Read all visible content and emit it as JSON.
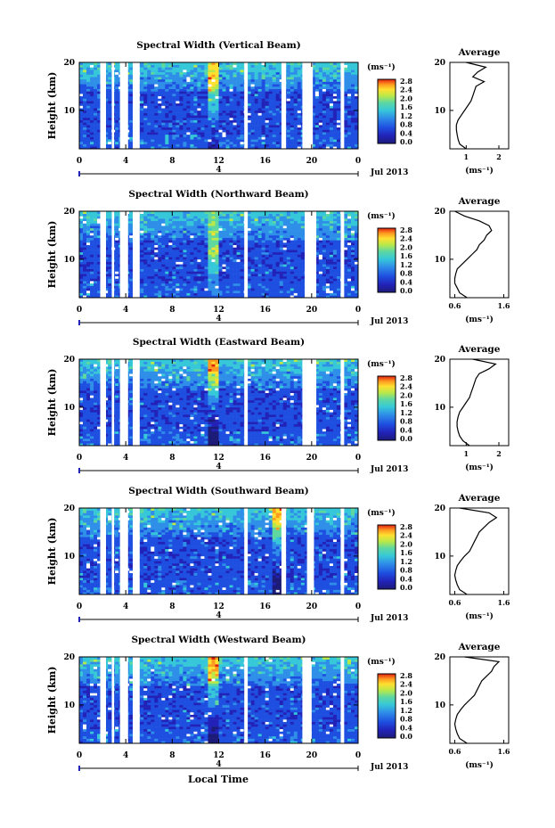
{
  "figure": {
    "shared_xlabel": "Local Time",
    "date_label": "Jul 2013",
    "colorbar_unit": "(ms⁻¹)",
    "colorbar_ticks": [
      "0.0",
      "0.4",
      "0.8",
      "1.2",
      "1.6",
      "2.0",
      "2.4",
      "2.8"
    ],
    "height_label": "Height (km)",
    "time_ticks": [
      "0",
      "4",
      "8",
      "12",
      "16",
      "20",
      "0"
    ],
    "day_label": "4",
    "height_ticks": [
      "20",
      "10"
    ],
    "profile_title": "Average",
    "profile_xlabel": "(ms⁻¹)",
    "colors": {
      "scale": [
        "#1c1c78",
        "#2222b8",
        "#1e4fe0",
        "#2f8fe8",
        "#36c8d8",
        "#5fd8a0",
        "#b8e84a",
        "#ffe030",
        "#ff9a20",
        "#e02010"
      ],
      "gap": "#ffffff"
    }
  },
  "chart_data": [
    {
      "type": "heatmap",
      "title": "Spectral Width (Vertical Beam)",
      "xlabel": "",
      "ylabel": "Height (km)",
      "xlim": [
        0,
        24
      ],
      "ylim": [
        2,
        20
      ],
      "colorbar": {
        "label": "(ms⁻¹)",
        "range": [
          0.0,
          2.8
        ]
      },
      "gaps_hours": [
        [
          1.8,
          2.3
        ],
        [
          2.8,
          3.0
        ],
        [
          3.5,
          4.2
        ],
        [
          4.6,
          5.2
        ],
        [
          14.2,
          14.5
        ],
        [
          17.4,
          17.8
        ],
        [
          19.2,
          20.1
        ],
        [
          22.5,
          22.8
        ]
      ],
      "features": [
        {
          "hour": 11.5,
          "height": 16,
          "value": 2.6
        }
      ],
      "profile": {
        "title": "Average",
        "xlabel": "(ms⁻¹)",
        "xticks": [
          "1",
          "2"
        ],
        "xlim": [
          0.5,
          2.3
        ],
        "heights": [
          2,
          3,
          4,
          5,
          6,
          7,
          8,
          9,
          10,
          11,
          12,
          13,
          14,
          15,
          16,
          17,
          18,
          19,
          20
        ],
        "values": [
          1.0,
          0.8,
          0.75,
          0.72,
          0.7,
          0.7,
          0.75,
          0.85,
          0.95,
          1.05,
          1.15,
          1.2,
          1.25,
          1.3,
          1.55,
          1.2,
          1.35,
          1.6,
          1.0
        ]
      }
    },
    {
      "type": "heatmap",
      "title": "Spectral Width (Northward Beam)",
      "xlabel": "",
      "ylabel": "Height (km)",
      "xlim": [
        0,
        24
      ],
      "ylim": [
        2,
        20
      ],
      "colorbar": {
        "label": "(ms⁻¹)",
        "range": [
          0.0,
          2.8
        ]
      },
      "gaps_hours": [
        [
          1.8,
          2.3
        ],
        [
          2.8,
          3.0
        ],
        [
          3.5,
          4.2
        ],
        [
          4.6,
          5.2
        ],
        [
          14.2,
          14.5
        ],
        [
          19.4,
          20.4
        ],
        [
          22.5,
          22.8
        ]
      ],
      "features": [
        {
          "hour": 11.5,
          "height": 12,
          "value": 2.4
        }
      ],
      "profile": {
        "title": "Average",
        "xlabel": "(ms⁻¹)",
        "xticks": [
          "0.6",
          "1.6"
        ],
        "xlim": [
          0.5,
          1.7
        ],
        "heights": [
          2,
          3,
          4,
          5,
          6,
          7,
          8,
          9,
          10,
          11,
          12,
          13,
          14,
          15,
          16,
          17,
          18,
          19,
          20
        ],
        "values": [
          0.85,
          0.7,
          0.65,
          0.6,
          0.6,
          0.62,
          0.65,
          0.75,
          0.85,
          0.95,
          1.05,
          1.1,
          1.2,
          1.25,
          1.35,
          1.3,
          1.1,
          0.8,
          0.6
        ]
      }
    },
    {
      "type": "heatmap",
      "title": "Spectral Width (Eastward Beam)",
      "xlabel": "",
      "ylabel": "Height (km)",
      "xlim": [
        0,
        24
      ],
      "ylim": [
        2,
        20
      ],
      "colorbar": {
        "label": "(ms⁻¹)",
        "range": [
          0.0,
          2.8
        ]
      },
      "gaps_hours": [
        [
          1.8,
          2.3
        ],
        [
          2.8,
          3.0
        ],
        [
          3.5,
          4.2
        ],
        [
          4.6,
          5.2
        ],
        [
          14.2,
          14.5
        ],
        [
          19.2,
          20.4
        ],
        [
          22.5,
          22.8
        ]
      ],
      "features": [
        {
          "hour": 11.5,
          "height": 19,
          "value": 2.8
        }
      ],
      "profile": {
        "title": "Average",
        "xlabel": "(ms⁻¹)",
        "xticks": [
          "1",
          "2"
        ],
        "xlim": [
          0.5,
          2.3
        ],
        "heights": [
          2,
          3,
          4,
          5,
          6,
          7,
          8,
          9,
          10,
          11,
          12,
          13,
          14,
          15,
          16,
          17,
          18,
          19,
          20
        ],
        "values": [
          1.1,
          0.9,
          0.8,
          0.75,
          0.72,
          0.72,
          0.75,
          0.8,
          0.9,
          1.0,
          1.1,
          1.15,
          1.2,
          1.25,
          1.3,
          1.4,
          1.7,
          1.9,
          1.2
        ]
      }
    },
    {
      "type": "heatmap",
      "title": "Spectral Width (Southward Beam)",
      "xlabel": "",
      "ylabel": "Height (km)",
      "xlim": [
        0,
        24
      ],
      "ylim": [
        2,
        20
      ],
      "colorbar": {
        "label": "(ms⁻¹)",
        "range": [
          0.0,
          2.8
        ]
      },
      "gaps_hours": [
        [
          1.8,
          2.3
        ],
        [
          2.8,
          3.0
        ],
        [
          3.5,
          4.2
        ],
        [
          4.6,
          5.2
        ],
        [
          14.2,
          14.5
        ],
        [
          17.4,
          17.8
        ],
        [
          19.6,
          20.2
        ],
        [
          22.5,
          22.8
        ]
      ],
      "features": [
        {
          "hour": 17.0,
          "height": 19,
          "value": 2.6
        }
      ],
      "profile": {
        "title": "Average",
        "xlabel": "(ms⁻¹)",
        "xticks": [
          "0.6",
          "1.6"
        ],
        "xlim": [
          0.5,
          1.7
        ],
        "heights": [
          2,
          3,
          4,
          5,
          6,
          7,
          8,
          9,
          10,
          11,
          12,
          13,
          14,
          15,
          16,
          17,
          18,
          19,
          20
        ],
        "values": [
          0.85,
          0.7,
          0.65,
          0.62,
          0.6,
          0.62,
          0.65,
          0.72,
          0.8,
          0.9,
          0.95,
          1.0,
          1.05,
          1.1,
          1.2,
          1.3,
          1.45,
          1.3,
          0.7
        ]
      }
    },
    {
      "type": "heatmap",
      "title": "Spectral Width (Westward Beam)",
      "xlabel": "Local Time",
      "ylabel": "Height (km)",
      "xlim": [
        0,
        24
      ],
      "ylim": [
        2,
        20
      ],
      "colorbar": {
        "label": "(ms⁻¹)",
        "range": [
          0.0,
          2.8
        ]
      },
      "gaps_hours": [
        [
          1.8,
          2.3
        ],
        [
          2.8,
          3.0
        ],
        [
          3.5,
          4.2
        ],
        [
          4.6,
          5.2
        ],
        [
          14.2,
          14.5
        ],
        [
          19.2,
          20.0
        ],
        [
          22.5,
          22.8
        ]
      ],
      "features": [
        {
          "hour": 11.5,
          "height": 18,
          "value": 2.6
        }
      ],
      "profile": {
        "title": "Average",
        "xlabel": "(ms⁻¹)",
        "xticks": [
          "0.6",
          "1.6"
        ],
        "xlim": [
          0.5,
          1.7
        ],
        "heights": [
          2,
          3,
          4,
          5,
          6,
          7,
          8,
          9,
          10,
          11,
          12,
          13,
          14,
          15,
          16,
          17,
          18,
          19,
          20
        ],
        "values": [
          0.85,
          0.7,
          0.65,
          0.62,
          0.6,
          0.62,
          0.65,
          0.72,
          0.8,
          0.9,
          1.0,
          1.05,
          1.1,
          1.15,
          1.25,
          1.35,
          1.4,
          1.5,
          0.8
        ]
      }
    }
  ]
}
